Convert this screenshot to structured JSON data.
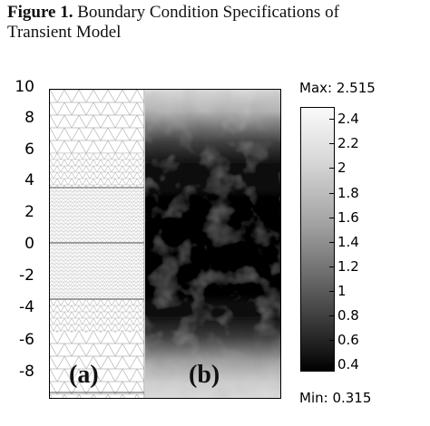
{
  "caption": {
    "figure_label": "Figure 1.",
    "title_line1": " Boundary Condition Specifications of",
    "title_line2": "Transient Model"
  },
  "y_axis": {
    "ticks": [
      "10",
      "8",
      "6",
      "4",
      "2",
      "0",
      "-2",
      "-4",
      "-6",
      "-8"
    ]
  },
  "panels": {
    "a_label": "(a)",
    "b_label": "(b)"
  },
  "colorbar": {
    "max_label": "Max: 2.515",
    "min_label": "Min: 0.315",
    "ticks": [
      "2.4",
      "2.2",
      "2",
      "1.8",
      "1.6",
      "1.4",
      "1.2",
      "1",
      "0.8",
      "0.6",
      "0.4"
    ]
  },
  "colors": {
    "mesh_line": "#b0b0b0",
    "subdomain_line": "#555555"
  }
}
